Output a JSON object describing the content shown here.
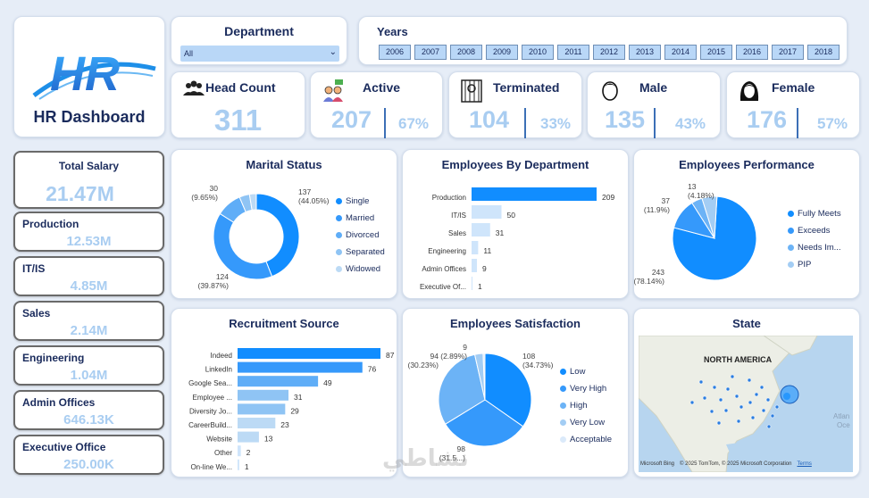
{
  "logo": {
    "letters": "HR",
    "title": "HR Dashboard"
  },
  "department": {
    "label": "Department",
    "selected": "All"
  },
  "years": {
    "label": "Years",
    "items": [
      "2006",
      "2007",
      "2008",
      "2009",
      "2010",
      "2011",
      "2012",
      "2013",
      "2014",
      "2015",
      "2016",
      "2017",
      "2018"
    ]
  },
  "kpis": {
    "headcount": {
      "label": "Head Count",
      "value": "311"
    },
    "active": {
      "label": "Active",
      "value": "207",
      "pct": "67%"
    },
    "terminated": {
      "label": "Terminated",
      "value": "104",
      "pct": "33%"
    },
    "male": {
      "label": "Male",
      "value": "135",
      "pct": "43%"
    },
    "female": {
      "label": "Female",
      "value": "176",
      "pct": "57%"
    }
  },
  "salary": [
    {
      "label": "Total Salary",
      "value": "21.47M"
    },
    {
      "label": "Production",
      "value": "12.53M"
    },
    {
      "label": "IT/IS",
      "value": "4.85M"
    },
    {
      "label": "Sales",
      "value": "2.14M"
    },
    {
      "label": "Engineering",
      "value": "1.04M"
    },
    {
      "label": "Admin Offices",
      "value": "646.13K"
    },
    {
      "label": "Executive Office",
      "value": "250.00K"
    }
  ],
  "chart_data": [
    {
      "type": "pie",
      "title": "Marital Status",
      "categories": [
        "Single",
        "Married",
        "Divorced",
        "Separated",
        "Widowed"
      ],
      "values": [
        137,
        124,
        30,
        12,
        8
      ],
      "labels": [
        {
          "value": "137",
          "pct": "(44.05%)"
        },
        {
          "value": "124",
          "pct": "(39.87%)"
        },
        {
          "value": "30",
          "pct": "(9.65%)"
        }
      ],
      "colors": [
        "#118dff",
        "#3599fb",
        "#5fadf7",
        "#8fc4f4",
        "#bcdaf5"
      ],
      "legend": "right"
    },
    {
      "type": "bar",
      "title": "Employees By Department",
      "categories": [
        "Production",
        "IT/IS",
        "Sales",
        "Engineering",
        "Admin Offices",
        "Executive Of..."
      ],
      "values": [
        209,
        50,
        31,
        11,
        9,
        1
      ],
      "colors": [
        "#118dff",
        "#cfe5fb",
        "#cfe5fb",
        "#cfe5fb",
        "#cfe5fb",
        "#cfe5fb"
      ]
    },
    {
      "type": "pie",
      "title": "Employees Performance",
      "categories": [
        "Fully Meets",
        "Exceeds",
        "Needs Im...",
        "PIP"
      ],
      "values": [
        243,
        37,
        13,
        18
      ],
      "labels": [
        {
          "value": "243",
          "pct": "(78.14%)"
        },
        {
          "value": "37",
          "pct": "(11.9%)"
        },
        {
          "value": "13",
          "pct": "(4.18%)"
        }
      ],
      "colors": [
        "#118dff",
        "#3599fb",
        "#6cb3f6",
        "#a3cdf4"
      ],
      "legend": "right"
    },
    {
      "type": "bar",
      "title": "Recruitment Source",
      "categories": [
        "Indeed",
        "LinkedIn",
        "Google Sea...",
        "Employee ...",
        "Diversity Jo...",
        "CareerBuild...",
        "Website",
        "Other",
        "On-line We..."
      ],
      "values": [
        87,
        76,
        49,
        31,
        29,
        23,
        13,
        2,
        1
      ],
      "colors": [
        "#118dff",
        "#3599fb",
        "#5fadf7",
        "#8fc4f4",
        "#8fc4f4",
        "#bcdaf5",
        "#bcdaf5",
        "#cfe5fb",
        "#cfe5fb"
      ]
    },
    {
      "type": "pie",
      "title": "Employees Satisfaction",
      "categories": [
        "Low",
        "Very High",
        "High",
        "Very Low",
        "Acceptable"
      ],
      "values": [
        108,
        98,
        94,
        9,
        2
      ],
      "labels": [
        {
          "value": "108",
          "pct": "(34.73%)"
        },
        {
          "value": "98",
          "pct": "(31.5...)"
        },
        {
          "value": "94",
          "pct": "(30.23%)"
        },
        {
          "value": "9",
          "pct": "(2.89%)"
        }
      ],
      "colors": [
        "#118dff",
        "#3599fb",
        "#6cb3f6",
        "#a3cdf4",
        "#dbeafa"
      ],
      "legend": "right"
    }
  ],
  "map": {
    "title": "State",
    "region_label": "NORTH AMERICA",
    "ocean_label": "Atlan",
    "ocean_label2": "Oce",
    "provider": "Microsoft Bing",
    "copyright": "© 2025 TomTom, © 2025 Microsoft Corporation",
    "terms": "Terms"
  },
  "watermark": "نشاطي"
}
